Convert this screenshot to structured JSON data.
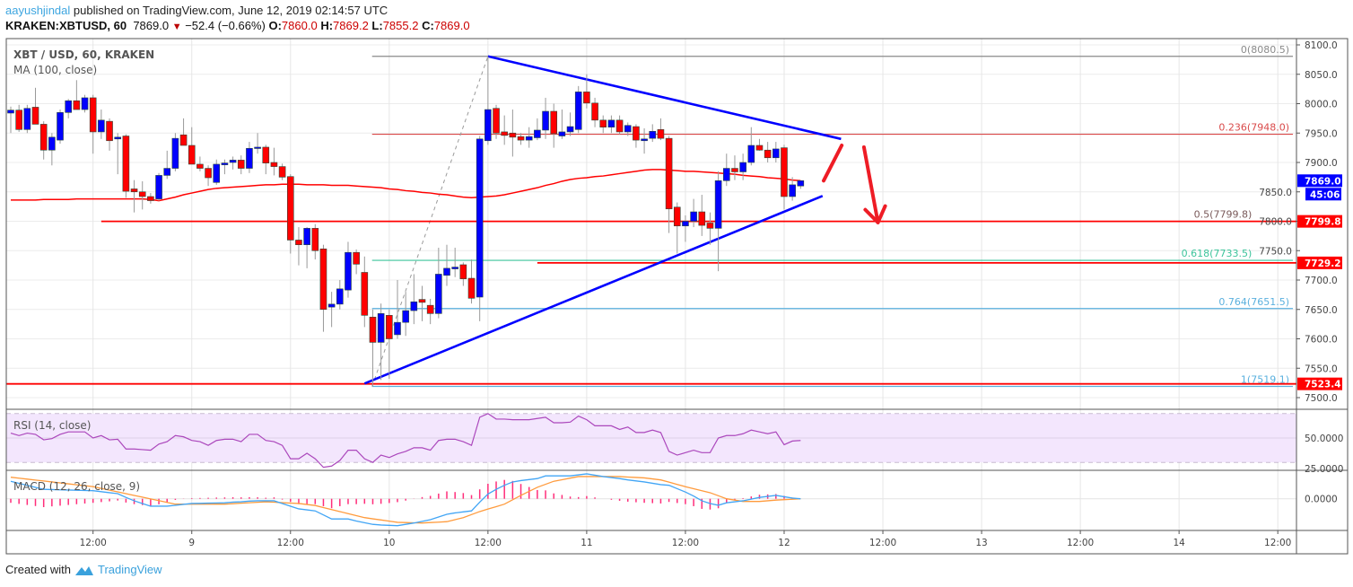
{
  "header": {
    "publisher": "aayushjindal",
    "published_text": "published on TradingView.com, June 12, 2019 02:14:57 UTC",
    "symbol": "KRAKEN:XBTUSD, 60",
    "last": "7869.0",
    "change": "−52.4 (−0.66%)",
    "o_label": "O:",
    "o": "7860.0",
    "h_label": "H:",
    "h": "7869.2",
    "l_label": "L:",
    "l": "7855.2",
    "c_label": "C:",
    "c": "7869.0"
  },
  "footer": {
    "created_with": "Created with",
    "brand": "TradingView"
  },
  "chart_data": {
    "type": "candlestick",
    "title": "XBT / USD, 60, KRAKEN",
    "start": "2019-06-08T02:00",
    "interval_minutes": 60,
    "ylim": [
      7475,
      8110
    ],
    "grid": true,
    "colors": {
      "up": "#0000ff",
      "down": "#ff0000",
      "ma": "#ff0000",
      "rsi": "#ab47bc",
      "rsi_band": "#f3e6fd",
      "macd": "#42a5f5",
      "signal": "#ff9b3d",
      "histogram": "#ff2d7a",
      "trendline": "#0000ff",
      "support": "#ff0000"
    },
    "candles_ohlc": [
      [
        7984,
        7995,
        7950,
        7989
      ],
      [
        7989,
        7998,
        7952,
        7956
      ],
      [
        7956,
        7998,
        7950,
        7992
      ],
      [
        7994,
        8027,
        7970,
        7965
      ],
      [
        7965,
        7970,
        7905,
        7921
      ],
      [
        7921,
        7950,
        7895,
        7943
      ],
      [
        7938,
        7990,
        7932,
        7985
      ],
      [
        7985,
        8008,
        7975,
        8005
      ],
      [
        8005,
        8040,
        7992,
        7990
      ],
      [
        7990,
        8015,
        7985,
        8010
      ],
      [
        8010,
        8015,
        7915,
        7952
      ],
      [
        7952,
        7990,
        7940,
        7972
      ],
      [
        7970,
        7975,
        7920,
        7937
      ],
      [
        7940,
        7950,
        7880,
        7943
      ],
      [
        7945,
        7948,
        7840,
        7851
      ],
      [
        7855,
        7870,
        7815,
        7850
      ],
      [
        7850,
        7868,
        7820,
        7842
      ],
      [
        7842,
        7848,
        7830,
        7835
      ],
      [
        7838,
        7882,
        7835,
        7878
      ],
      [
        7878,
        7920,
        7872,
        7890
      ],
      [
        7890,
        7950,
        7885,
        7941
      ],
      [
        7947,
        7975,
        7935,
        7929
      ],
      [
        7929,
        7960,
        7900,
        7897
      ],
      [
        7897,
        7910,
        7885,
        7890
      ],
      [
        7890,
        7895,
        7860,
        7874
      ],
      [
        7866,
        7905,
        7862,
        7897
      ],
      [
        7896,
        7905,
        7880,
        7899
      ],
      [
        7900,
        7910,
        7888,
        7904
      ],
      [
        7904,
        7912,
        7880,
        7890
      ],
      [
        7890,
        7935,
        7882,
        7924
      ],
      [
        7925,
        7950,
        7915,
        7926
      ],
      [
        7926,
        7930,
        7880,
        7899
      ],
      [
        7900,
        7925,
        7878,
        7893
      ],
      [
        7893,
        7898,
        7870,
        7875
      ],
      [
        7876,
        7880,
        7745,
        7768
      ],
      [
        7768,
        7790,
        7725,
        7760
      ],
      [
        7760,
        7790,
        7720,
        7788
      ],
      [
        7788,
        7795,
        7735,
        7750
      ],
      [
        7753,
        7760,
        7612,
        7650
      ],
      [
        7654,
        7680,
        7620,
        7659
      ],
      [
        7659,
        7700,
        7650,
        7685
      ],
      [
        7683,
        7765,
        7670,
        7747
      ],
      [
        7747,
        7752,
        7710,
        7727
      ],
      [
        7713,
        7740,
        7620,
        7640
      ],
      [
        7637,
        7650,
        7519,
        7594
      ],
      [
        7594,
        7660,
        7530,
        7643
      ],
      [
        7640,
        7650,
        7532,
        7600
      ],
      [
        7607,
        7700,
        7600,
        7628
      ],
      [
        7628,
        7680,
        7605,
        7648
      ],
      [
        7648,
        7710,
        7625,
        7663
      ],
      [
        7667,
        7690,
        7630,
        7662
      ],
      [
        7657,
        7668,
        7625,
        7643
      ],
      [
        7643,
        7755,
        7635,
        7710
      ],
      [
        7708,
        7760,
        7690,
        7720
      ],
      [
        7719,
        7755,
        7705,
        7722
      ],
      [
        7726,
        7730,
        7690,
        7702
      ],
      [
        7703,
        7735,
        7660,
        7669
      ],
      [
        7671,
        7945,
        7630,
        7940
      ],
      [
        7937,
        8080.5,
        7930,
        7990
      ],
      [
        7992,
        7998,
        7940,
        7950
      ],
      [
        7952,
        7980,
        7930,
        7946
      ],
      [
        7950,
        7990,
        7910,
        7943
      ],
      [
        7944,
        7950,
        7930,
        7938
      ],
      [
        7938,
        7960,
        7925,
        7944
      ],
      [
        7942,
        7975,
        7938,
        7955
      ],
      [
        7955,
        8010,
        7940,
        7987
      ],
      [
        7987,
        8000,
        7925,
        7949
      ],
      [
        7945,
        7990,
        7940,
        7952
      ],
      [
        7952,
        7985,
        7945,
        7961
      ],
      [
        7956,
        8030,
        7950,
        8020
      ],
      [
        8020,
        8050,
        7992,
        8001
      ],
      [
        8001,
        8010,
        7960,
        7972
      ],
      [
        7972,
        7980,
        7950,
        7960
      ],
      [
        7960,
        7980,
        7950,
        7972
      ],
      [
        7972,
        7980,
        7948,
        7952
      ],
      [
        7952,
        7968,
        7945,
        7963
      ],
      [
        7961,
        7965,
        7925,
        7938
      ],
      [
        7937,
        7958,
        7915,
        7940
      ],
      [
        7941,
        7965,
        7935,
        7953
      ],
      [
        7956,
        7975,
        7938,
        7941
      ],
      [
        7941,
        7945,
        7780,
        7821
      ],
      [
        7824,
        7832,
        7745,
        7792
      ],
      [
        7792,
        7810,
        7765,
        7800
      ],
      [
        7800,
        7838,
        7790,
        7816
      ],
      [
        7816,
        7845,
        7775,
        7793
      ],
      [
        7797,
        7815,
        7760,
        7788
      ],
      [
        7788,
        7885,
        7715,
        7869
      ],
      [
        7869,
        7915,
        7860,
        7890
      ],
      [
        7890,
        7912,
        7870,
        7884
      ],
      [
        7884,
        7915,
        7870,
        7900
      ],
      [
        7900,
        7960,
        7895,
        7929
      ],
      [
        7929,
        7940,
        7920,
        7921
      ],
      [
        7921,
        7935,
        7900,
        7908
      ],
      [
        7908,
        7935,
        7900,
        7923
      ],
      [
        7925,
        7930,
        7820,
        7842
      ],
      [
        7842,
        7875,
        7835,
        7862
      ],
      [
        7860,
        7869.2,
        7855.2,
        7869
      ]
    ],
    "ma_label": "MA (100, close)",
    "ma100": [
      7836,
      7836,
      7836,
      7836,
      7837,
      7837,
      7837,
      7837,
      7838,
      7838,
      7838,
      7838,
      7838,
      7838,
      7838,
      7838,
      7838,
      7837,
      7835,
      7838,
      7841,
      7845,
      7848,
      7851,
      7854,
      7856,
      7857,
      7858,
      7859,
      7860,
      7861,
      7862,
      7862,
      7863,
      7863,
      7863,
      7862,
      7862,
      7862,
      7861,
      7861,
      7861,
      7860,
      7859,
      7858,
      7857,
      7855,
      7854,
      7852,
      7851,
      7849,
      7848,
      7846,
      7845,
      7843,
      7841,
      7840,
      7841,
      7842,
      7843,
      7845,
      7848,
      7851,
      7854,
      7857,
      7861,
      7864,
      7868,
      7871,
      7873,
      7874,
      7876,
      7877,
      7879,
      7881,
      7883,
      7885,
      7887,
      7888,
      7888,
      7887,
      7886,
      7885,
      7885,
      7884,
      7883,
      7882,
      7881,
      7880,
      7878,
      7877,
      7876,
      7874,
      7873,
      7872,
      7870,
      7869
    ],
    "price_ticks": [
      "8100.0",
      "8050.0",
      "8000.0",
      "7950.0",
      "7900.0",
      "7850.0",
      "7800.0",
      "7750.0",
      "7700.0",
      "7650.0",
      "7600.0",
      "7550.0",
      "7500.0"
    ],
    "time_ticks": [
      {
        "label": "12:00",
        "t": "2019-06-08T12:00"
      },
      {
        "label": "9",
        "t": "2019-06-09T00:00"
      },
      {
        "label": "12:00",
        "t": "2019-06-09T12:00"
      },
      {
        "label": "10",
        "t": "2019-06-10T00:00"
      },
      {
        "label": "12:00",
        "t": "2019-06-10T12:00"
      },
      {
        "label": "11",
        "t": "2019-06-11T00:00"
      },
      {
        "label": "12:00",
        "t": "2019-06-11T12:00"
      },
      {
        "label": "12",
        "t": "2019-06-12T00:00"
      },
      {
        "label": "12:00",
        "t": "2019-06-12T12:00"
      },
      {
        "label": "13",
        "t": "2019-06-13T00:00"
      },
      {
        "label": "12:00",
        "t": "2019-06-13T12:00"
      },
      {
        "label": "14",
        "t": "2019-06-14T00:00"
      },
      {
        "label": "12:00",
        "t": "2019-06-14T12:00"
      }
    ],
    "fib": {
      "from": {
        "t": "2019-06-09T21:55",
        "p": 7519.1
      },
      "to": {
        "t": "2019-06-10T12:00",
        "p": 8080.5
      },
      "levels": [
        {
          "label": "0(8080.5)",
          "price": 8080.5,
          "color": "#8a8a8a"
        },
        {
          "label": "0.236(7948.0)",
          "price": 7948.0,
          "color": "#d94a4a"
        },
        {
          "label": "0.5(7799.8)",
          "price": 7799.8,
          "color": "#7a5a5a"
        },
        {
          "label": "0.618(7733.5)",
          "price": 7733.5,
          "color": "#3cc49b"
        },
        {
          "label": "0.764(7651.5)",
          "price": 7651.5,
          "color": "#5ab0de"
        },
        {
          "label": "1(7519.1)",
          "price": 7519.1,
          "color": "#5ab0de"
        }
      ]
    },
    "support_lines": [
      {
        "price": 7799.8,
        "from": "2019-06-08T13:00",
        "label": "7799.8"
      },
      {
        "price": 7729.2,
        "from": "2019-06-10T18:00",
        "label": "7729.2"
      },
      {
        "price": 7523.4,
        "from": "2019-06-08T01:30",
        "label": "7523.4"
      }
    ],
    "trendlines": [
      {
        "from": {
          "t": "2019-06-10T12:00",
          "p": 8080.5
        },
        "to": {
          "t": "2019-06-12T06:55",
          "p": 7940
        }
      },
      {
        "from": {
          "t": "2019-06-09T21:00",
          "p": 7524
        },
        "to": {
          "t": "2019-06-12T04:40",
          "p": 7843
        }
      }
    ],
    "arrows": [
      {
        "from": {
          "t": "2019-06-12T04:48",
          "p": 7869
        },
        "to": {
          "t": "2019-06-12T07:00",
          "p": 7929
        },
        "head": false
      },
      {
        "from": {
          "t": "2019-06-12T09:42",
          "p": 7926
        },
        "to": {
          "t": "2019-06-12T11:24",
          "p": 7798
        },
        "head": true
      }
    ],
    "last_price_label": "7869.0",
    "countdown": "45:06",
    "rsi": {
      "label": "RSI (14, close)",
      "ticks": [
        "50.0000",
        "25.0000"
      ],
      "band": [
        30,
        70
      ],
      "values": [
        54,
        52,
        54,
        53,
        48.5,
        49.5,
        53,
        55,
        55,
        55,
        50,
        52,
        48.5,
        49,
        41,
        41,
        40.5,
        40,
        45,
        47,
        52,
        51,
        48,
        47,
        44,
        48,
        49,
        49,
        47,
        53,
        53,
        48,
        47,
        44,
        33,
        33,
        37.5,
        33,
        26,
        27,
        31.6,
        40,
        40,
        33,
        30,
        36,
        34,
        37,
        39,
        42,
        42,
        40,
        48,
        49,
        49,
        47,
        44,
        67,
        70,
        65.5,
        65.5,
        65,
        65,
        65,
        66,
        67,
        62.5,
        62.5,
        63,
        68,
        65,
        60,
        60,
        60,
        57,
        59,
        54.5,
        54.5,
        56.5,
        54.5,
        39,
        36,
        38,
        40,
        38,
        38,
        50,
        52,
        52,
        53.5,
        56.5,
        55,
        53.5,
        55,
        44.5,
        47.5,
        48
      ]
    },
    "macd": {
      "label": "MACD (12, 26, close, 9)",
      "ticks": [
        "0.0000"
      ],
      "macd": [
        26,
        23,
        20,
        17,
        14,
        13.7,
        13.3,
        13,
        12.7,
        12.3,
        12,
        10.5,
        9,
        7.6,
        2,
        -3,
        -7,
        -11,
        -11,
        -11,
        -9.7,
        -8.3,
        -7,
        -6.8,
        -6.5,
        -6.2,
        -6,
        -5,
        -4.5,
        -3.5,
        -3,
        -3,
        -3,
        -7,
        -11,
        -15,
        -16.5,
        -18,
        -24,
        -30,
        -30,
        -30,
        -33,
        -35.5,
        -38,
        -39,
        -39.5,
        -40,
        -38,
        -36,
        -33.5,
        -31,
        -27,
        -23,
        -21,
        -19.5,
        -18,
        -5,
        7,
        14,
        20,
        25,
        27,
        28.5,
        30,
        34,
        34,
        34,
        34,
        35.5,
        37,
        35,
        33,
        31.5,
        30,
        28,
        26.5,
        25,
        23,
        21,
        20,
        15,
        10,
        4,
        -3,
        -7,
        -9.6,
        -6,
        -4.5,
        -3,
        -0.5,
        2,
        3.5,
        5,
        3,
        1,
        0
      ],
      "signal": [
        32,
        30.6,
        29.2,
        27.8,
        26.4,
        25,
        23.6,
        22.2,
        20.8,
        19.4,
        18,
        15.4,
        12.8,
        10.2,
        7.6,
        5,
        2.4,
        -0.2,
        -2.8,
        -5.4,
        -8,
        -8,
        -8,
        -8,
        -8,
        -8,
        -8,
        -7.3,
        -6.6,
        -5.9,
        -5.2,
        -4.5,
        -5.1,
        -5.8,
        -6.4,
        -7,
        -8.5,
        -10,
        -13,
        -16,
        -19,
        -22,
        -25,
        -28,
        -29.8,
        -31.5,
        -33.2,
        -35,
        -35.3,
        -35.7,
        -36,
        -35.3,
        -34.7,
        -34,
        -31,
        -28,
        -23.5,
        -19,
        -15.3,
        -11.7,
        -8,
        -1.5,
        5,
        11,
        17,
        21.5,
        26,
        28.3,
        30.7,
        33,
        33,
        33,
        33,
        33,
        33,
        32.3,
        31.7,
        31,
        29.5,
        28,
        24.7,
        21.3,
        18,
        15,
        12,
        9,
        4.5,
        0,
        -2,
        -4,
        -4,
        -4,
        -3,
        -2,
        -1.3,
        -0.7,
        0
      ]
    }
  }
}
